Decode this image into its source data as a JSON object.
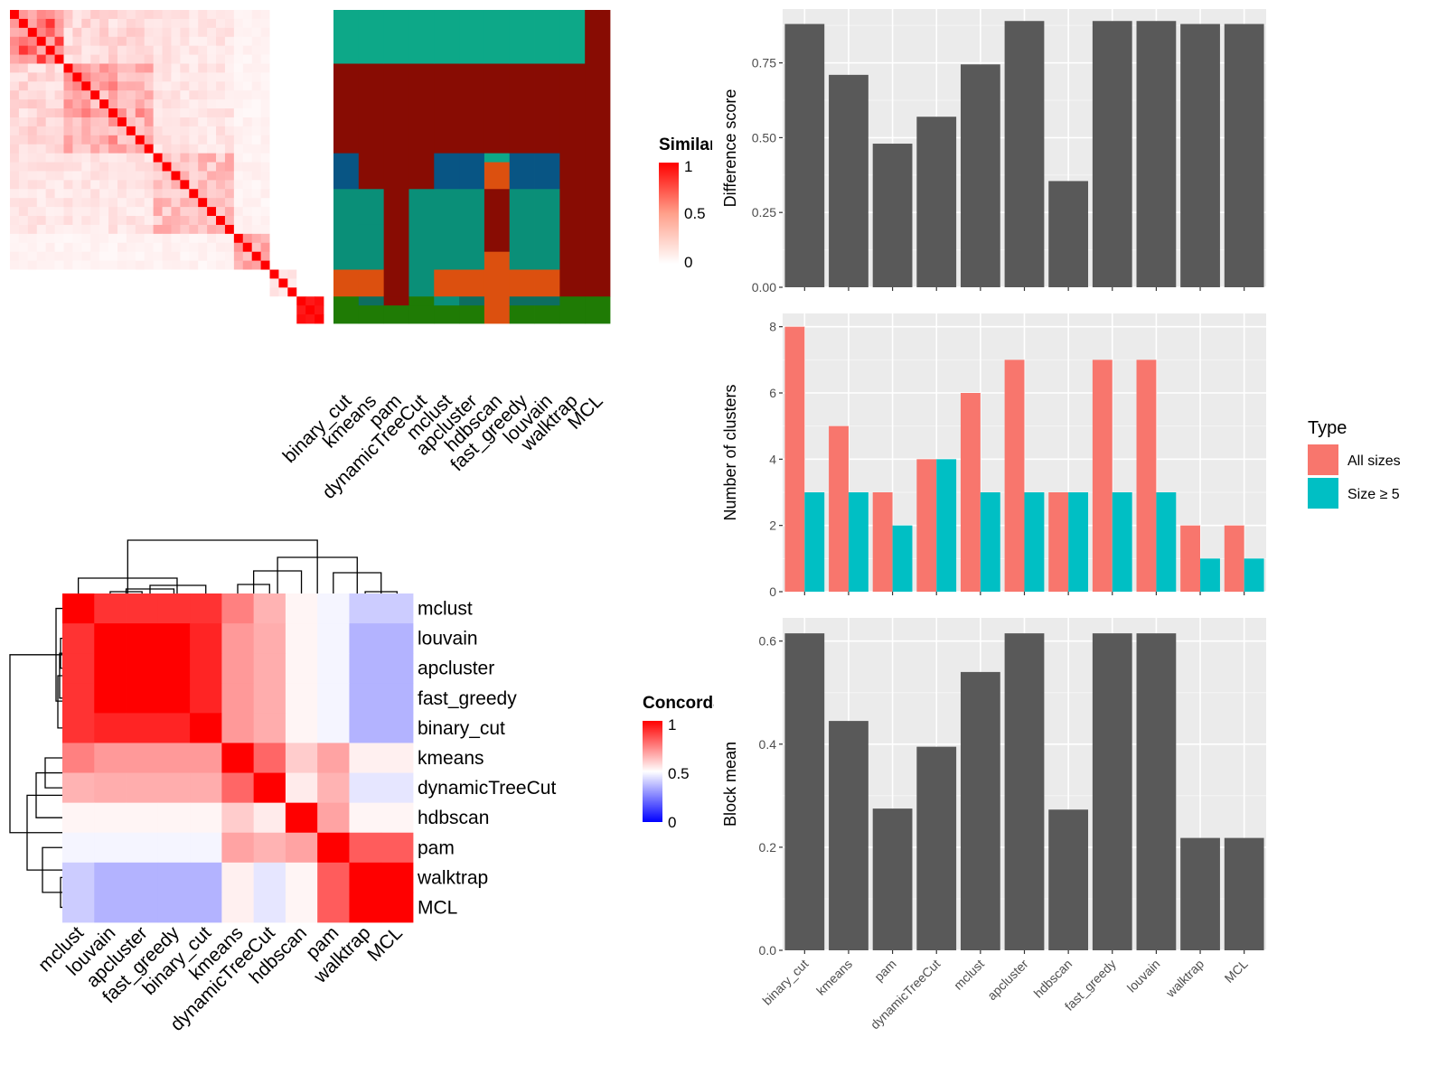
{
  "chart_data": [
    {
      "type": "heatmap",
      "id": "similarity_heatmap",
      "legend_title": "Similarity",
      "legend_labels": [
        "1",
        "0.5",
        "0"
      ],
      "color_low": "#ffffff",
      "color_high": "#ff0000",
      "n_items": 35,
      "method_labels": [
        "binary_cut",
        "kmeans",
        "pam",
        "dynamicTreeCut",
        "mclust",
        "apcluster",
        "hdbscan",
        "fast_greedy",
        "louvain",
        "walktrap",
        "MCL"
      ],
      "blocks": [
        {
          "start": 0,
          "end": 6,
          "within": 0.6,
          "between": 0.2
        },
        {
          "start": 6,
          "end": 16,
          "within": 0.35,
          "between": 0.15
        },
        {
          "start": 16,
          "end": 25,
          "within": 0.25,
          "between": 0.1
        },
        {
          "start": 25,
          "end": 29,
          "within": 0.35,
          "between": 0.05
        },
        {
          "start": 29,
          "end": 32,
          "within": 0.1,
          "between": 0.0
        },
        {
          "start": 32,
          "end": 35,
          "within": 0.7,
          "between": 0.0
        }
      ],
      "cluster_palette": [
        "#0da888",
        "#880c03",
        "#085584",
        "#0a8f78",
        "#dc500f",
        "#0d6e60",
        "#2a148a",
        "#1f7b05"
      ],
      "cluster_segments": [
        [
          [
            0,
            6,
            0
          ],
          [
            6,
            16,
            1
          ],
          [
            16,
            20,
            2
          ],
          [
            20,
            29,
            3
          ],
          [
            29,
            32,
            4
          ],
          [
            32,
            35,
            7
          ]
        ],
        [
          [
            0,
            6,
            0
          ],
          [
            6,
            20,
            1
          ],
          [
            20,
            24,
            3
          ],
          [
            24,
            29,
            3
          ],
          [
            29,
            32,
            4
          ],
          [
            32,
            33,
            5
          ],
          [
            33,
            35,
            7
          ]
        ],
        [
          [
            0,
            6,
            0
          ],
          [
            6,
            32,
            1
          ],
          [
            32,
            33,
            1
          ],
          [
            33,
            35,
            7
          ]
        ],
        [
          [
            0,
            6,
            0
          ],
          [
            6,
            20,
            1
          ],
          [
            20,
            32,
            3
          ],
          [
            32,
            33,
            7
          ],
          [
            33,
            35,
            7
          ]
        ],
        [
          [
            0,
            6,
            0
          ],
          [
            6,
            16,
            1
          ],
          [
            16,
            20,
            2
          ],
          [
            20,
            29,
            3
          ],
          [
            29,
            32,
            4
          ],
          [
            32,
            33,
            3
          ],
          [
            33,
            35,
            7
          ]
        ],
        [
          [
            0,
            6,
            0
          ],
          [
            6,
            16,
            1
          ],
          [
            16,
            20,
            2
          ],
          [
            20,
            29,
            3
          ],
          [
            29,
            32,
            4
          ],
          [
            32,
            33,
            5
          ],
          [
            33,
            35,
            7
          ]
        ],
        [
          [
            0,
            6,
            0
          ],
          [
            6,
            16,
            1
          ],
          [
            16,
            17,
            0
          ],
          [
            17,
            20,
            4
          ],
          [
            20,
            27,
            1
          ],
          [
            27,
            35,
            4
          ]
        ],
        [
          [
            0,
            6,
            0
          ],
          [
            6,
            16,
            1
          ],
          [
            16,
            20,
            2
          ],
          [
            20,
            29,
            3
          ],
          [
            29,
            32,
            4
          ],
          [
            32,
            33,
            5
          ],
          [
            33,
            35,
            7
          ]
        ],
        [
          [
            0,
            6,
            0
          ],
          [
            6,
            16,
            1
          ],
          [
            16,
            20,
            2
          ],
          [
            20,
            29,
            3
          ],
          [
            29,
            32,
            4
          ],
          [
            32,
            33,
            5
          ],
          [
            33,
            35,
            7
          ]
        ],
        [
          [
            0,
            6,
            0
          ],
          [
            6,
            32,
            1
          ],
          [
            32,
            35,
            7
          ]
        ],
        [
          [
            0,
            32,
            1
          ],
          [
            32,
            35,
            7
          ]
        ]
      ]
    },
    {
      "type": "heatmap",
      "id": "concordance_heatmap",
      "legend_title": "Concordance",
      "legend_labels": [
        "1",
        "0.5",
        "0"
      ],
      "color_low": "#0000ff",
      "color_mid": "#ffffff",
      "color_high": "#ff0000",
      "rows": [
        "mclust",
        "louvain",
        "apcluster",
        "fast_greedy",
        "binary_cut",
        "kmeans",
        "dynamicTreeCut",
        "hdbscan",
        "pam",
        "walktrap",
        "MCL"
      ],
      "columns": [
        "mclust",
        "louvain",
        "apcluster",
        "fast_greedy",
        "binary_cut",
        "kmeans",
        "dynamicTreeCut",
        "hdbscan",
        "pam",
        "walktrap",
        "MCL"
      ],
      "values": [
        [
          1.0,
          0.9,
          0.9,
          0.9,
          0.9,
          0.75,
          0.65,
          0.52,
          0.48,
          0.4,
          0.4
        ],
        [
          0.9,
          1.0,
          1.0,
          1.0,
          0.93,
          0.7,
          0.66,
          0.52,
          0.48,
          0.35,
          0.35
        ],
        [
          0.9,
          1.0,
          1.0,
          1.0,
          0.93,
          0.7,
          0.66,
          0.52,
          0.48,
          0.35,
          0.35
        ],
        [
          0.9,
          1.0,
          1.0,
          1.0,
          0.93,
          0.7,
          0.66,
          0.52,
          0.48,
          0.35,
          0.35
        ],
        [
          0.9,
          0.93,
          0.93,
          0.93,
          1.0,
          0.7,
          0.66,
          0.52,
          0.48,
          0.35,
          0.35
        ],
        [
          0.75,
          0.7,
          0.7,
          0.7,
          0.7,
          1.0,
          0.8,
          0.6,
          0.68,
          0.53,
          0.53
        ],
        [
          0.65,
          0.66,
          0.66,
          0.66,
          0.66,
          0.8,
          1.0,
          0.54,
          0.65,
          0.45,
          0.45
        ],
        [
          0.52,
          0.52,
          0.52,
          0.52,
          0.52,
          0.6,
          0.54,
          1.0,
          0.68,
          0.52,
          0.52
        ],
        [
          0.48,
          0.48,
          0.48,
          0.48,
          0.48,
          0.68,
          0.65,
          0.68,
          1.0,
          0.82,
          0.82
        ],
        [
          0.4,
          0.35,
          0.35,
          0.35,
          0.35,
          0.53,
          0.45,
          0.52,
          0.82,
          1.0,
          1.0
        ],
        [
          0.4,
          0.35,
          0.35,
          0.35,
          0.35,
          0.53,
          0.45,
          0.52,
          0.82,
          1.0,
          1.0
        ]
      ]
    },
    {
      "type": "bar",
      "id": "difference_score",
      "categories": [
        "binary_cut",
        "kmeans",
        "pam",
        "dynamicTreeCut",
        "mclust",
        "apcluster",
        "hdbscan",
        "fast_greedy",
        "louvain",
        "walktrap",
        "MCL"
      ],
      "values": [
        0.88,
        0.71,
        0.48,
        0.57,
        0.745,
        0.89,
        0.355,
        0.89,
        0.89,
        0.88,
        0.88
      ],
      "ylabel": "Difference score",
      "ylim": [
        0,
        0.93
      ],
      "yticks": [
        "0.00",
        "0.25",
        "0.50",
        "0.75"
      ],
      "ytick_values": [
        0,
        0.25,
        0.5,
        0.75
      ],
      "bar_color": "#595959"
    },
    {
      "type": "bar",
      "id": "number_of_clusters",
      "categories": [
        "binary_cut",
        "kmeans",
        "pam",
        "dynamicTreeCut",
        "mclust",
        "apcluster",
        "hdbscan",
        "fast_greedy",
        "louvain",
        "walktrap",
        "MCL"
      ],
      "series": [
        {
          "name": "All sizes",
          "values": [
            8,
            5,
            3,
            4,
            6,
            7,
            3,
            7,
            7,
            2,
            2
          ],
          "color": "#f8766d"
        },
        {
          "name": "Size ≥ 5",
          "values": [
            3,
            3,
            2,
            4,
            3,
            3,
            3,
            3,
            3,
            1,
            1
          ],
          "color": "#00bfc4"
        }
      ],
      "ylabel": "Number of clusters",
      "ylim": [
        0,
        8.4
      ],
      "yticks": [
        "0",
        "2",
        "4",
        "6",
        "8"
      ],
      "ytick_values": [
        0,
        2,
        4,
        6,
        8
      ],
      "legend_title": "Type"
    },
    {
      "type": "bar",
      "id": "block_mean",
      "categories": [
        "binary_cut",
        "kmeans",
        "pam",
        "dynamicTreeCut",
        "mclust",
        "apcluster",
        "hdbscan",
        "fast_greedy",
        "louvain",
        "walktrap",
        "MCL"
      ],
      "values": [
        0.615,
        0.445,
        0.275,
        0.395,
        0.54,
        0.615,
        0.273,
        0.615,
        0.615,
        0.218,
        0.218
      ],
      "ylabel": "Block mean",
      "ylim": [
        0,
        0.645
      ],
      "yticks": [
        "0.0",
        "0.2",
        "0.4",
        "0.6"
      ],
      "ytick_values": [
        0,
        0.2,
        0.4,
        0.6
      ],
      "bar_color": "#595959"
    }
  ]
}
